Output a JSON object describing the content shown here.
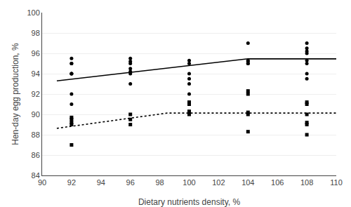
{
  "chart_data": {
    "type": "scatter",
    "xlabel": "Dietary nutrients density, %",
    "ylabel": "Hen-day egg production, %",
    "xlim": [
      90,
      110
    ],
    "ylim": [
      84,
      100
    ],
    "xticks": [
      90,
      92,
      94,
      96,
      98,
      100,
      102,
      104,
      106,
      108,
      110
    ],
    "yticks": [
      84,
      86,
      88,
      90,
      92,
      94,
      96,
      98,
      100
    ],
    "grid": "y",
    "series": [
      {
        "type": "scatter",
        "marker": "circle",
        "color": "#000000",
        "x": [
          92,
          92,
          92,
          92,
          92,
          92,
          92,
          92,
          96,
          96,
          96,
          96,
          96,
          96,
          96,
          100,
          100,
          100,
          100,
          100,
          100,
          104,
          104,
          104,
          104,
          104,
          108,
          108,
          108,
          108,
          108,
          108,
          108,
          108
        ],
        "values": [
          91.0,
          92.0,
          94.0,
          94.0,
          94.0,
          95.0,
          95.0,
          95.5,
          93.0,
          94.0,
          94.2,
          94.5,
          95.0,
          95.2,
          95.5,
          92.0,
          93.0,
          93.5,
          94.0,
          95.0,
          95.3,
          95.0,
          95.0,
          95.2,
          95.3,
          97.0,
          93.5,
          94.0,
          95.0,
          95.3,
          96.0,
          96.2,
          96.5,
          97.0
        ]
      },
      {
        "type": "scatter",
        "marker": "square",
        "color": "#000000",
        "x": [
          92,
          92,
          92,
          92,
          92,
          96,
          96,
          96,
          100,
          100,
          100,
          100,
          100,
          104,
          104,
          104,
          104,
          104,
          108,
          108,
          108,
          108,
          108,
          108
        ],
        "values": [
          87.0,
          89.0,
          89.2,
          89.5,
          89.7,
          89.0,
          89.5,
          90.0,
          90.0,
          90.2,
          90.3,
          91.0,
          91.2,
          88.3,
          90.0,
          90.2,
          92.0,
          92.3,
          88.0,
          89.0,
          89.2,
          90.0,
          91.0,
          91.2
        ]
      },
      {
        "type": "line",
        "line_style": "solid",
        "color": "#000000",
        "x": [
          91,
          104,
          110
        ],
        "values": [
          93.289,
          95.46,
          95.46
        ]
      },
      {
        "type": "line",
        "line_style": "dotted",
        "color": "#000000",
        "x": [
          91,
          98.5,
          110
        ],
        "values": [
          88.63,
          90.13,
          90.13
        ]
      }
    ]
  }
}
